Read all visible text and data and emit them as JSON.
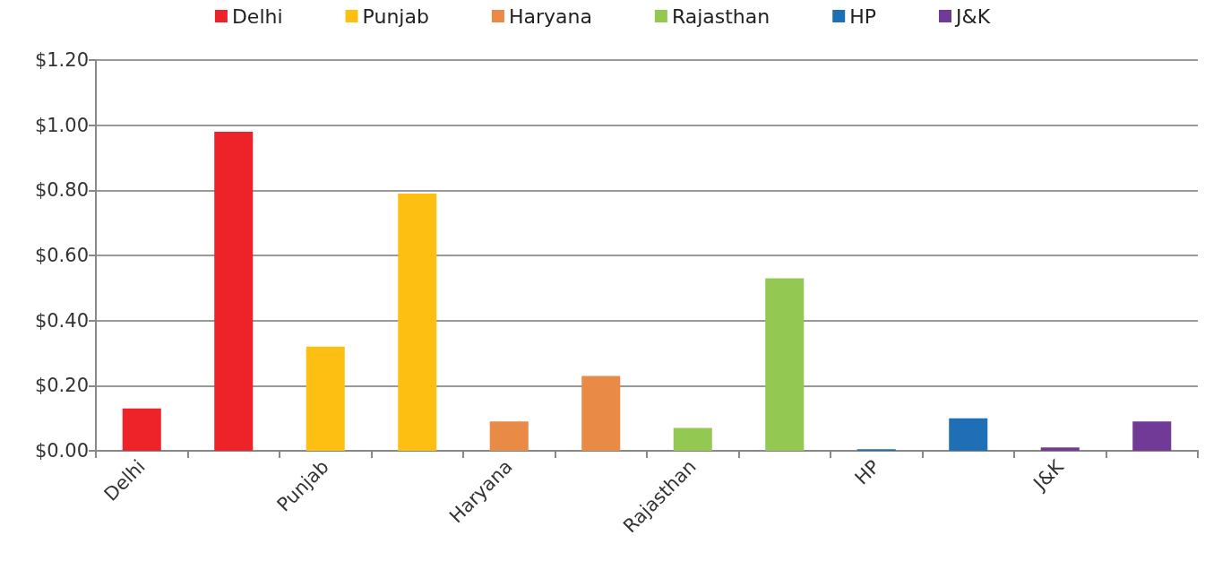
{
  "chart_data": {
    "type": "bar",
    "categories": [
      "Delhi",
      null,
      "Punjab",
      null,
      "Haryana",
      null,
      "Rajasthan",
      null,
      "HP",
      null,
      "J&K",
      null
    ],
    "series": [
      {
        "name": "Delhi",
        "color": "#ee2229",
        "values": [
          0.13,
          0.98,
          null,
          null,
          null,
          null,
          null,
          null,
          null,
          null,
          null,
          null
        ]
      },
      {
        "name": "Punjab",
        "color": "#fdc012",
        "values": [
          null,
          null,
          0.32,
          0.79,
          null,
          null,
          null,
          null,
          null,
          null,
          null,
          null
        ]
      },
      {
        "name": "Haryana",
        "color": "#ea8a47",
        "values": [
          null,
          null,
          null,
          null,
          0.09,
          0.23,
          null,
          null,
          null,
          null,
          null,
          null
        ]
      },
      {
        "name": "Rajasthan",
        "color": "#93c852",
        "values": [
          null,
          null,
          null,
          null,
          null,
          null,
          0.07,
          0.53,
          null,
          null,
          null,
          null
        ]
      },
      {
        "name": "HP",
        "color": "#1f6fb6",
        "values": [
          null,
          null,
          null,
          null,
          null,
          null,
          null,
          null,
          0.005,
          0.1,
          null,
          null
        ]
      },
      {
        "name": "J&K",
        "color": "#703a96",
        "values": [
          null,
          null,
          null,
          null,
          null,
          null,
          null,
          null,
          null,
          null,
          0.01,
          0.09
        ]
      }
    ],
    "ylim": [
      0,
      1.2
    ],
    "yticks": [
      {
        "value": 0,
        "label": "$0.00"
      },
      {
        "value": 0.2,
        "label": "$0.20"
      },
      {
        "value": 0.4,
        "label": "$0.40"
      },
      {
        "value": 0.6,
        "label": "$0.60"
      },
      {
        "value": 0.8,
        "label": "$0.80"
      },
      {
        "value": 1,
        "label": "$1.00"
      },
      {
        "value": 1.2,
        "label": "$1.20"
      }
    ],
    "grid": "y",
    "legend": "top"
  }
}
